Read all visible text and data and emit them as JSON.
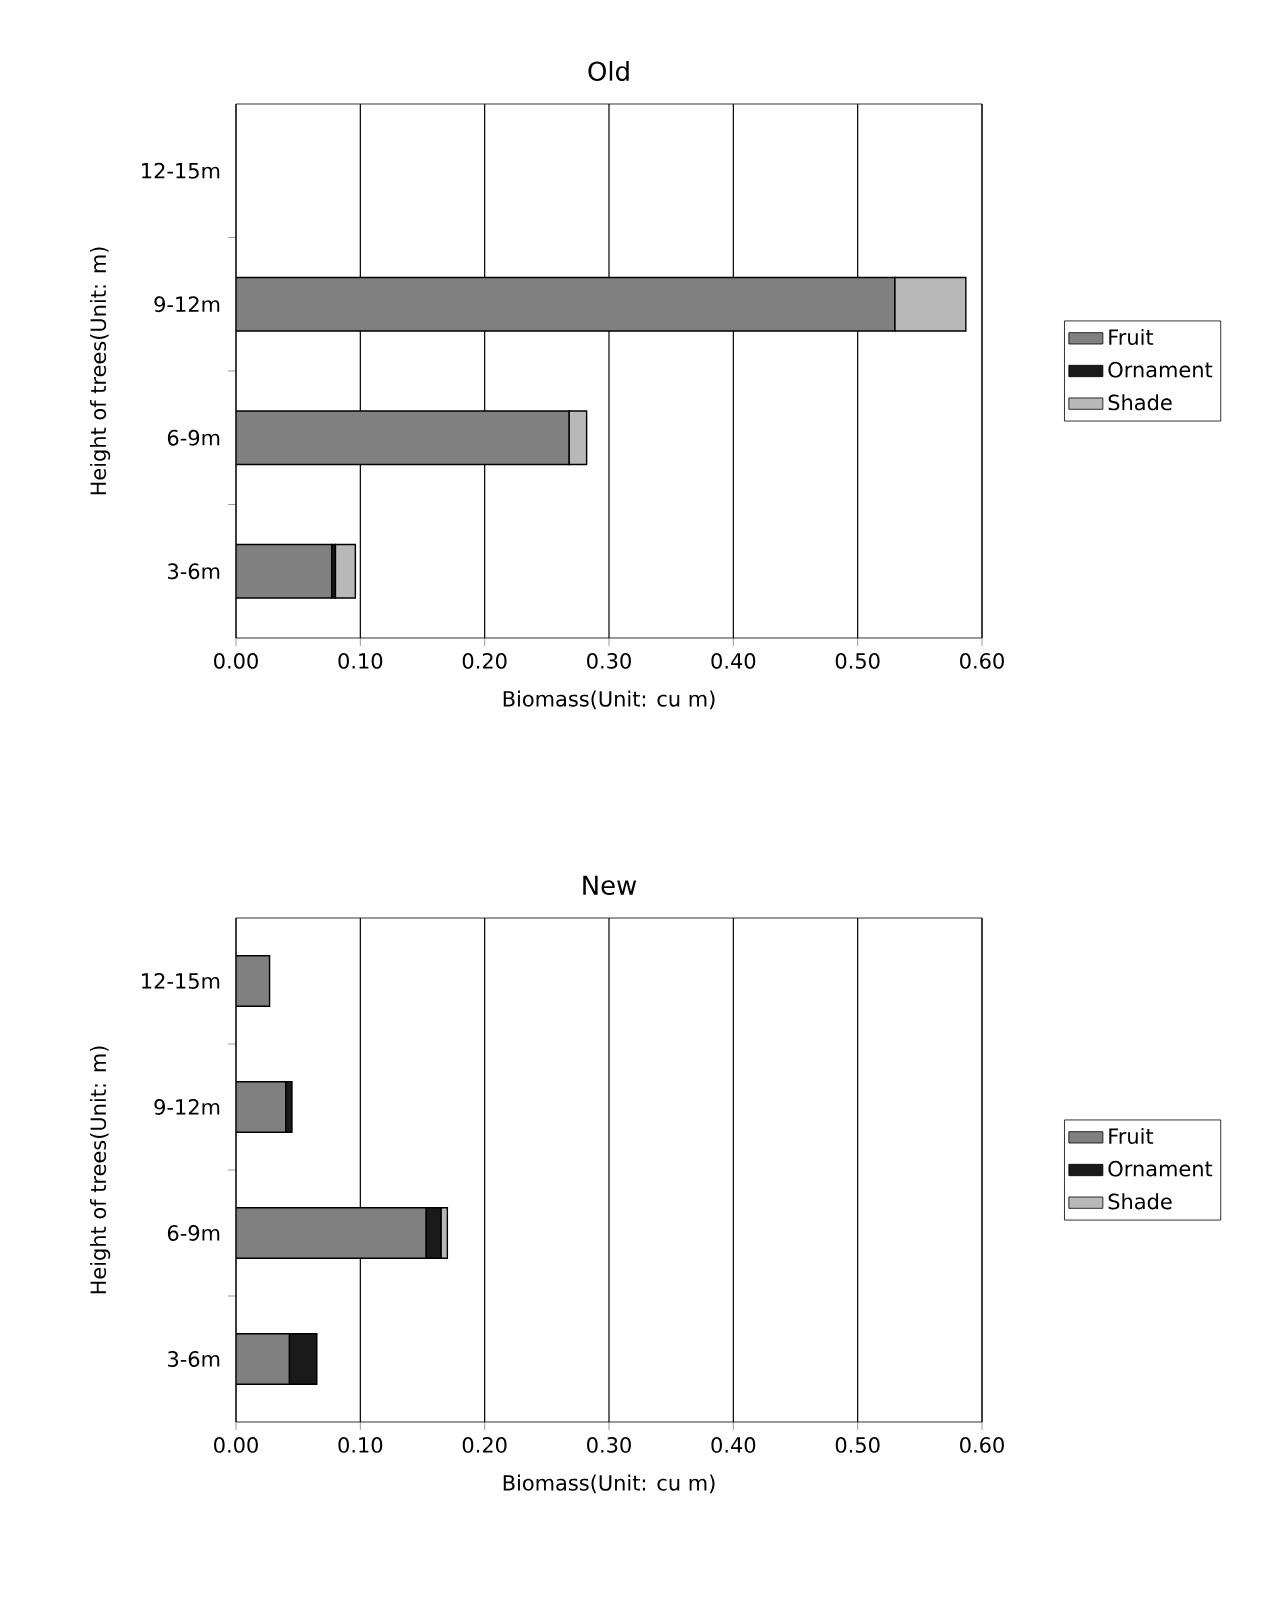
{
  "chart_data": [
    {
      "type": "bar",
      "orientation": "horizontal",
      "stacked": true,
      "title": "Old",
      "xlabel": "Biomass(Unit: cu m)",
      "ylabel": "Height of trees(Unit: m)",
      "categories": [
        "12-15m",
        "9-12m",
        "6-9m",
        "3-6m"
      ],
      "series": [
        {
          "name": "Fruit",
          "color": "#808080",
          "values": [
            null,
            0.53,
            0.268,
            0.077
          ]
        },
        {
          "name": "Ornament",
          "color": "#1a1a1a",
          "values": [
            null,
            null,
            null,
            0.003
          ]
        },
        {
          "name": "Shade",
          "color": "#b8b8b8",
          "values": [
            null,
            0.057,
            0.014,
            0.016
          ]
        }
      ],
      "xlim": [
        0,
        0.6
      ],
      "xticks": [
        {
          "value": 0,
          "label": "0.00"
        },
        {
          "value": 0.1,
          "label": "0.10"
        },
        {
          "value": 0.2,
          "label": "0.20"
        },
        {
          "value": 0.3,
          "label": "0.30"
        },
        {
          "value": 0.4,
          "label": "0.40"
        },
        {
          "value": 0.5,
          "label": "0.50"
        },
        {
          "value": 0.6,
          "label": "0.60"
        }
      ],
      "grid": "x",
      "legend": "right"
    },
    {
      "type": "bar",
      "orientation": "horizontal",
      "stacked": true,
      "title": "New",
      "xlabel": "Biomass(Unit: cu m)",
      "ylabel": "Height of trees(Unit: m)",
      "categories": [
        "12-15m",
        "9-12m",
        "6-9m",
        "3-6m"
      ],
      "series": [
        {
          "name": "Fruit",
          "color": "#808080",
          "values": [
            0.027,
            0.04,
            0.153,
            0.043
          ]
        },
        {
          "name": "Ornament",
          "color": "#1a1a1a",
          "values": [
            null,
            0.005,
            0.012,
            0.022
          ]
        },
        {
          "name": "Shade",
          "color": "#b8b8b8",
          "values": [
            null,
            null,
            0.005,
            null
          ]
        }
      ],
      "xlim": [
        0,
        0.6
      ],
      "xticks": [
        {
          "value": 0,
          "label": "0.00"
        },
        {
          "value": 0.1,
          "label": "0.10"
        },
        {
          "value": 0.2,
          "label": "0.20"
        },
        {
          "value": 0.3,
          "label": "0.30"
        },
        {
          "value": 0.4,
          "label": "0.40"
        },
        {
          "value": 0.5,
          "label": "0.50"
        },
        {
          "value": 0.6,
          "label": "0.60"
        }
      ],
      "grid": "x",
      "legend": "right"
    }
  ]
}
